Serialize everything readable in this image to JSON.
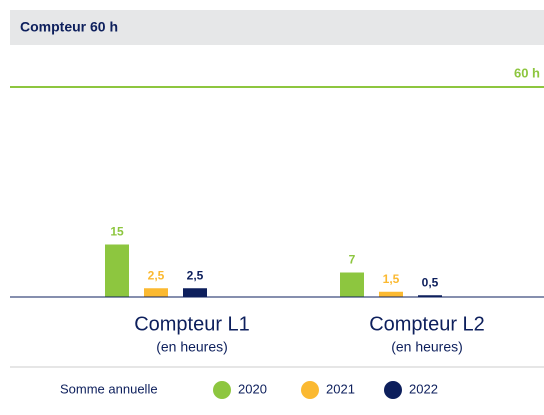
{
  "chart_data": {
    "type": "bar",
    "title": "Compteur 60 h",
    "categories": [
      "Compteur L1",
      "Compteur L2"
    ],
    "category_sublabels": [
      "(en heures)",
      "(en heures)"
    ],
    "legend_title": "Somme annuelle",
    "series": [
      {
        "name": "2020",
        "color": "#8dc63f",
        "values": [
          15,
          7
        ],
        "value_labels": [
          "15",
          "7"
        ]
      },
      {
        "name": "2021",
        "color": "#fbb931",
        "values": [
          2.5,
          1.5
        ],
        "value_labels": [
          "2,5",
          "1,5"
        ]
      },
      {
        "name": "2022",
        "color": "#0d1f5c",
        "values": [
          2.5,
          0.5
        ],
        "value_labels": [
          "2,5",
          "0,5"
        ]
      }
    ],
    "ylim": [
      0,
      60
    ],
    "threshold": {
      "value": 60,
      "label": "60 h",
      "color": "#8dc63f"
    },
    "legend": "bottom"
  }
}
